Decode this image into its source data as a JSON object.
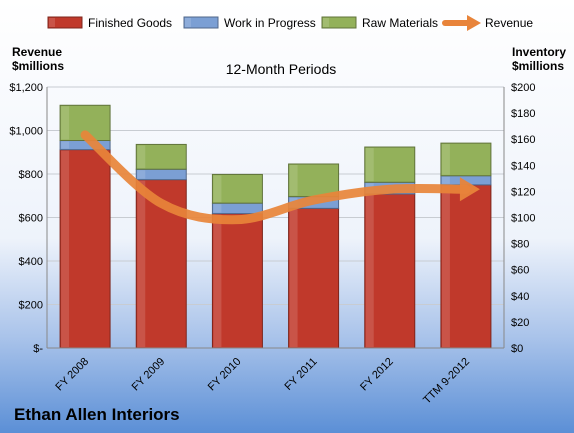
{
  "chart_data": {
    "type": "bar",
    "stacked": true,
    "title": "12-Month Periods",
    "company": "Ethan Allen Interiors",
    "left_axis_title": [
      "Revenue",
      "$millions"
    ],
    "right_axis_title": [
      "Inventory",
      "$millions"
    ],
    "categories": [
      "FY 2008",
      "FY 2009",
      "FY 2010",
      "FY 2011",
      "FY 2012",
      "TTM 9-2012"
    ],
    "left_ylim": [
      0,
      1200
    ],
    "right_ylim": [
      0,
      200
    ],
    "left_ticks": [
      {
        "value": 0,
        "label": "$-"
      },
      {
        "value": 200,
        "label": "$200"
      },
      {
        "value": 400,
        "label": "$400"
      },
      {
        "value": 600,
        "label": "$600"
      },
      {
        "value": 800,
        "label": "$800"
      },
      {
        "value": 1000,
        "label": "$1,000"
      },
      {
        "value": 1200,
        "label": "$1,200"
      }
    ],
    "right_ticks": [
      {
        "value": 0,
        "label": "$0"
      },
      {
        "value": 20,
        "label": "$20"
      },
      {
        "value": 40,
        "label": "$40"
      },
      {
        "value": 60,
        "label": "$60"
      },
      {
        "value": 80,
        "label": "$80"
      },
      {
        "value": 100,
        "label": "$100"
      },
      {
        "value": 120,
        "label": "$120"
      },
      {
        "value": 140,
        "label": "$140"
      },
      {
        "value": 160,
        "label": "$160"
      },
      {
        "value": 180,
        "label": "$180"
      },
      {
        "value": 200,
        "label": "$200"
      }
    ],
    "series": [
      {
        "name": "Finished Goods",
        "axis": "right",
        "color": "#c0392b",
        "values": [
          152,
          129,
          103,
          107,
          118,
          125
        ]
      },
      {
        "name": "Work in Progress",
        "axis": "right",
        "color": "#7b9fd4",
        "values": [
          7,
          8,
          8,
          9,
          9,
          7
        ]
      },
      {
        "name": "Raw Materials",
        "axis": "right",
        "color": "#93b15a",
        "values": [
          27,
          19,
          22,
          25,
          27,
          25
        ]
      }
    ],
    "line_series": {
      "name": "Revenue",
      "axis": "left",
      "color": "#e8843a",
      "values": [
        980,
        665,
        590,
        680,
        730,
        730
      ]
    },
    "grid": true,
    "legend": "top"
  }
}
